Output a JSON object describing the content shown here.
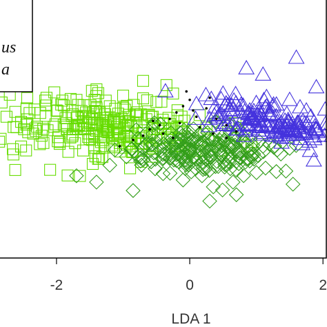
{
  "chart_data": {
    "type": "scatter",
    "title": "",
    "xlabel": "LDA 1",
    "ylabel": "",
    "xlim": [
      -2.9,
      2.05
    ],
    "ylim": [
      -3.0,
      3.2
    ],
    "xticks": [
      -2,
      0,
      2
    ],
    "xtick_labels": [
      "-2",
      "0",
      "2"
    ],
    "legend": {
      "placement": "top-left",
      "entries": [
        "us",
        "a"
      ]
    },
    "series": [
      {
        "marker": "square",
        "color": "#66dd00",
        "center": [
          -1.2,
          0.1
        ],
        "points": [
          [
            -2.45,
            0.55
          ],
          [
            -2.25,
            -0.3
          ],
          [
            -2.6,
            0.1
          ],
          [
            -2.0,
            0.5
          ],
          [
            -1.85,
            0.2
          ],
          [
            -1.7,
            0.75
          ],
          [
            -1.6,
            -0.45
          ],
          [
            -1.5,
            0.35
          ],
          [
            -1.4,
            1.0
          ],
          [
            -1.3,
            -0.2
          ],
          [
            -1.2,
            0.6
          ],
          [
            -1.1,
            0.05
          ],
          [
            -1.0,
            0.85
          ],
          [
            -0.9,
            -0.35
          ],
          [
            -0.8,
            0.4
          ],
          [
            -0.7,
            1.2
          ],
          [
            -0.6,
            -0.1
          ],
          [
            -0.5,
            0.7
          ],
          [
            -0.4,
            0.2
          ],
          [
            -2.75,
            0.35
          ],
          [
            -2.35,
            -0.05
          ],
          [
            -1.95,
            -0.25
          ],
          [
            -0.35,
            1.1
          ],
          [
            -0.25,
            0.9
          ],
          [
            -1.75,
            0.05
          ],
          [
            -2.15,
            0.8
          ],
          [
            -1.35,
            0.45
          ],
          [
            -0.95,
            0.15
          ]
        ]
      },
      {
        "marker": "diamond",
        "color": "#339e1a",
        "center": [
          0.1,
          -0.45
        ],
        "points": [
          [
            -1.7,
            -1.05
          ],
          [
            -1.4,
            -1.2
          ],
          [
            -1.2,
            -0.8
          ],
          [
            -0.95,
            -0.6
          ],
          [
            -0.7,
            -0.4
          ],
          [
            -0.4,
            -1.0
          ],
          [
            -0.2,
            -0.55
          ],
          [
            0.0,
            -0.3
          ],
          [
            0.2,
            -0.85
          ],
          [
            0.45,
            -0.45
          ],
          [
            0.65,
            -1.2
          ],
          [
            0.9,
            -0.7
          ],
          [
            1.1,
            -0.35
          ],
          [
            0.3,
            -1.65
          ],
          [
            -0.85,
            -1.4
          ],
          [
            0.7,
            -1.5
          ],
          [
            1.3,
            -0.95
          ],
          [
            1.5,
            -0.4
          ],
          [
            0.05,
            -0.6
          ],
          [
            -0.5,
            -0.25
          ],
          [
            1.55,
            -1.25
          ],
          [
            -0.1,
            -1.15
          ]
        ]
      },
      {
        "marker": "triangle",
        "color": "#4433dd",
        "center": [
          1.2,
          0.25
        ],
        "points": [
          [
            0.1,
            0.65
          ],
          [
            0.3,
            0.3
          ],
          [
            0.5,
            0.9
          ],
          [
            0.7,
            0.05
          ],
          [
            0.9,
            0.5
          ],
          [
            1.1,
            1.35
          ],
          [
            1.3,
            -0.1
          ],
          [
            1.5,
            0.75
          ],
          [
            1.7,
            0.25
          ],
          [
            1.9,
            1.05
          ],
          [
            1.25,
            0.6
          ],
          [
            0.85,
            1.5
          ],
          [
            1.6,
            1.75
          ],
          [
            0.6,
            0.5
          ],
          [
            1.45,
            0.15
          ],
          [
            1.75,
            0.5
          ],
          [
            1.0,
            0.15
          ],
          [
            0.4,
            0.45
          ]
        ]
      },
      {
        "marker": "dot",
        "color": "#000000",
        "points": [
          [
            -1.05,
            -0.35
          ],
          [
            -0.85,
            -0.2
          ],
          [
            -0.7,
            -0.1
          ],
          [
            -0.6,
            0.05
          ],
          [
            -0.45,
            0.15
          ],
          [
            -0.3,
            0.3
          ],
          [
            -0.2,
            0.45
          ],
          [
            -0.1,
            0.6
          ],
          [
            0.0,
            0.75
          ],
          [
            -0.05,
            0.95
          ],
          [
            0.1,
            0.35
          ],
          [
            0.25,
            0.55
          ],
          [
            0.4,
            0.3
          ],
          [
            0.55,
            0.15
          ],
          [
            0.7,
            0.0
          ],
          [
            0.55,
            -0.15
          ],
          [
            0.35,
            -0.05
          ],
          [
            0.15,
            0.1
          ],
          [
            -0.15,
            0.2
          ],
          [
            -0.4,
            -0.05
          ],
          [
            -0.55,
            0.25
          ],
          [
            0.05,
            0.5
          ],
          [
            0.3,
            0.8
          ],
          [
            -0.25,
            -0.15
          ]
        ]
      }
    ]
  }
}
